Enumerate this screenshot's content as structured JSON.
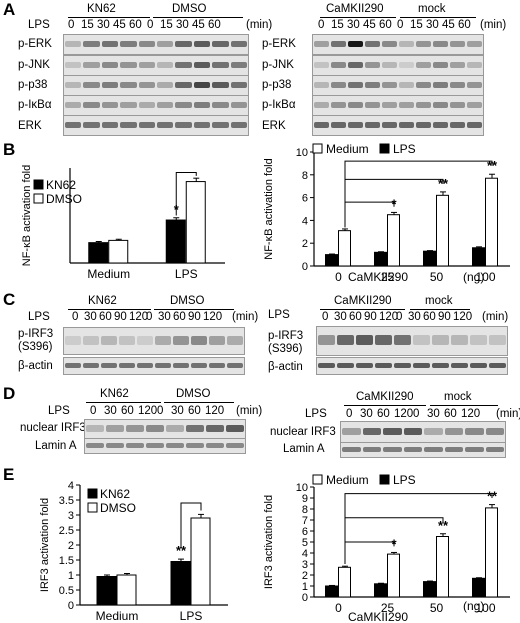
{
  "panels": {
    "A": "A",
    "B": "B",
    "C": "C",
    "D": "D",
    "E": "E"
  },
  "common": {
    "lps": "LPS",
    "min": "(min)",
    "kn62": "KN62",
    "dmso": "DMSO",
    "camk": "CaMKII290",
    "mock": "mock",
    "medium": "Medium",
    "lps_leg": "LPS",
    "kn62_leg": "KN62",
    "dmso_leg": "DMSO"
  },
  "panelA": {
    "times": [
      "0",
      "15",
      "30",
      "45",
      "60"
    ],
    "rows": [
      "p-ERK",
      "p-JNK",
      "p-p38",
      "p-IκBα",
      "ERK"
    ]
  },
  "panelC": {
    "times": [
      "0",
      "30",
      "60",
      "90",
      "120"
    ],
    "rows": [
      "p-IRF3\n(S396)",
      "β-actin"
    ],
    "rows_left": [
      "p-IRF3",
      "(S396)",
      "β-actin"
    ]
  },
  "panelD": {
    "times": [
      "0",
      "30",
      "60",
      "120"
    ],
    "rows": [
      "nuclear IRF3",
      "Lamin A"
    ]
  },
  "chart_data": [
    {
      "id": "B-left",
      "type": "bar",
      "ylabel": "NF-κB activation fold",
      "xlabel": "",
      "categories": [
        "Medium",
        "LPS"
      ],
      "series": [
        {
          "name": "KN62",
          "values": [
            0.9,
            1.9
          ],
          "errors": [
            0.05,
            0.1
          ]
        },
        {
          "name": "DMSO",
          "values": [
            1.0,
            3.6
          ],
          "errors": [
            0.05,
            0.15
          ]
        }
      ],
      "significance": [
        {
          "category": "LPS",
          "label": "*"
        }
      ],
      "legend": "left"
    },
    {
      "id": "B-right",
      "type": "bar",
      "ylabel": "NF-κB activation fold",
      "xlabel": "CaMKII290 (ng)",
      "categories": [
        "0",
        "25",
        "50",
        "100"
      ],
      "ylim": [
        0,
        10
      ],
      "yticks": [
        0,
        2,
        4,
        6,
        8,
        10
      ],
      "series": [
        {
          "name": "Medium",
          "values": [
            1.0,
            1.2,
            1.3,
            1.6
          ],
          "errors": [
            0.05,
            0.05,
            0.05,
            0.08
          ]
        },
        {
          "name": "LPS",
          "values": [
            3.1,
            4.5,
            6.2,
            7.7
          ],
          "errors": [
            0.15,
            0.2,
            0.3,
            0.35
          ]
        }
      ],
      "significance": [
        {
          "category": "25",
          "label": "*"
        },
        {
          "category": "50",
          "label": "**"
        },
        {
          "category": "100",
          "label": "**"
        }
      ],
      "legend": "top"
    },
    {
      "id": "E-left",
      "type": "bar",
      "ylabel": "IRF3 activation fold",
      "xlabel": "",
      "categories": [
        "Medium",
        "LPS"
      ],
      "ylim": [
        0,
        4
      ],
      "yticks": [
        0,
        0.5,
        1,
        1.5,
        2,
        2.5,
        3,
        3.5,
        4
      ],
      "series": [
        {
          "name": "KN62",
          "values": [
            0.95,
            1.45
          ],
          "errors": [
            0.05,
            0.08
          ]
        },
        {
          "name": "DMSO",
          "values": [
            1.0,
            2.9
          ],
          "errors": [
            0.05,
            0.12
          ]
        }
      ],
      "significance": [
        {
          "category": "LPS",
          "label": "**"
        }
      ],
      "legend": "top-left"
    },
    {
      "id": "E-right",
      "type": "bar",
      "ylabel": "IRF3 activation fold",
      "xlabel": "CaMKII290 (ng)",
      "categories": [
        "0",
        "25",
        "50",
        "100"
      ],
      "ylim": [
        0,
        10
      ],
      "yticks": [
        0,
        1,
        2,
        3,
        4,
        5,
        6,
        7,
        8,
        9,
        10
      ],
      "series": [
        {
          "name": "Medium",
          "values": [
            1.0,
            1.2,
            1.4,
            1.7
          ],
          "errors": [
            0.05,
            0.05,
            0.05,
            0.05
          ]
        },
        {
          "name": "LPS",
          "values": [
            2.7,
            3.9,
            5.5,
            8.1
          ],
          "errors": [
            0.1,
            0.15,
            0.25,
            0.3
          ]
        }
      ],
      "significance": [
        {
          "category": "25",
          "label": "*"
        },
        {
          "category": "50",
          "label": "**"
        },
        {
          "category": "100",
          "label": "**"
        }
      ],
      "legend": "top"
    }
  ]
}
